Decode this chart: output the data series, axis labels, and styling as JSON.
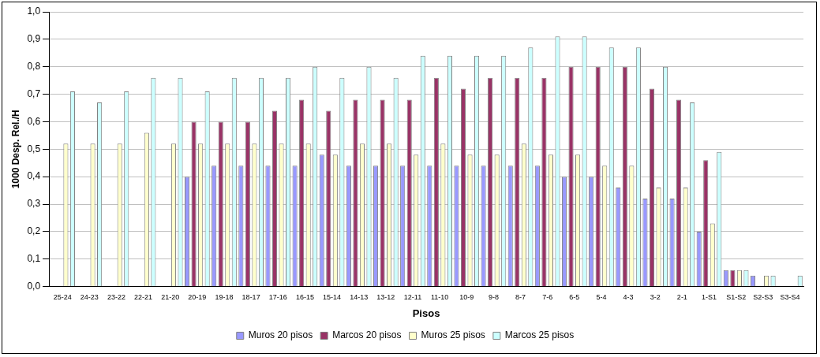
{
  "chart_data": {
    "type": "bar",
    "xlabel": "Pisos",
    "ylabel": "1000 Desp. Rel./H",
    "categories": [
      "25-24",
      "24-23",
      "23-22",
      "22-21",
      "21-20",
      "20-19",
      "19-18",
      "18-17",
      "17-16",
      "16-15",
      "15-14",
      "14-13",
      "13-12",
      "12-11",
      "11-10",
      "10-9",
      "9-8",
      "8-7",
      "7-6",
      "6-5",
      "5-4",
      "4-3",
      "3-2",
      "2-1",
      "1-S1",
      "S1-S2",
      "S2-S3",
      "S3-S4"
    ],
    "series": [
      {
        "name": "Muros 20 pisos",
        "color": "#9999ff",
        "values": [
          null,
          null,
          null,
          null,
          null,
          0.4,
          0.44,
          0.44,
          0.44,
          0.44,
          0.48,
          0.44,
          0.44,
          0.44,
          0.44,
          0.44,
          0.44,
          0.44,
          0.44,
          0.4,
          0.4,
          0.36,
          0.32,
          0.32,
          0.2,
          0.06,
          0.04,
          null
        ]
      },
      {
        "name": "Marcos 20 pisos",
        "color": "#993366",
        "values": [
          null,
          null,
          null,
          null,
          null,
          0.6,
          0.6,
          0.6,
          0.64,
          0.68,
          0.64,
          0.68,
          0.68,
          0.68,
          0.76,
          0.72,
          0.76,
          0.76,
          0.76,
          0.8,
          0.8,
          0.8,
          0.72,
          0.68,
          0.46,
          0.06,
          null,
          null
        ]
      },
      {
        "name": "Muros 25 pisos",
        "color": "#ffffcc",
        "values": [
          0.52,
          0.52,
          0.52,
          0.56,
          0.52,
          0.52,
          0.52,
          0.52,
          0.52,
          0.52,
          0.48,
          0.52,
          0.52,
          0.48,
          0.52,
          0.48,
          0.48,
          0.52,
          0.48,
          0.48,
          0.44,
          0.44,
          0.36,
          0.36,
          0.23,
          0.06,
          0.04,
          null
        ]
      },
      {
        "name": "Marcos 25 pisos",
        "color": "#ccffff",
        "values": [
          0.71,
          0.67,
          0.71,
          0.76,
          0.76,
          0.71,
          0.76,
          0.76,
          0.76,
          0.8,
          0.76,
          0.8,
          0.76,
          0.84,
          0.84,
          0.84,
          0.84,
          0.87,
          0.91,
          0.91,
          0.87,
          0.87,
          0.8,
          0.67,
          0.49,
          0.06,
          0.04,
          0.04
        ]
      }
    ],
    "ylim": [
      0,
      1
    ],
    "yticks": [
      {
        "value": 0,
        "label": "0,0"
      },
      {
        "value": 0.1,
        "label": "0,1"
      },
      {
        "value": 0.2,
        "label": "0,2"
      },
      {
        "value": 0.3,
        "label": "0,3"
      },
      {
        "value": 0.4,
        "label": "0,4"
      },
      {
        "value": 0.5,
        "label": "0,5"
      },
      {
        "value": 0.6,
        "label": "0,6"
      },
      {
        "value": 0.7,
        "label": "0,7"
      },
      {
        "value": 0.8,
        "label": "0,8"
      },
      {
        "value": 0.9,
        "label": "0,9"
      },
      {
        "value": 1,
        "label": "1,0"
      }
    ],
    "grid": "y",
    "legend": "bottom"
  }
}
